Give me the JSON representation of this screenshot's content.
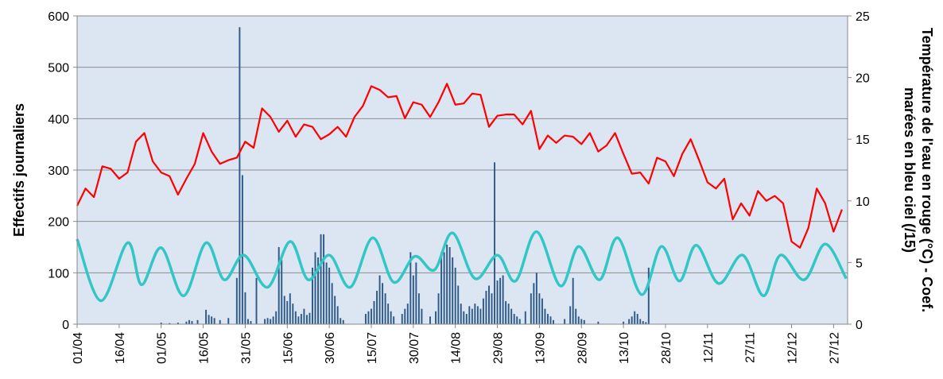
{
  "chart_data": {
    "type": "combo",
    "xlim": [
      0,
      275
    ],
    "xticks": [
      {
        "value": 0,
        "label": "01/04"
      },
      {
        "value": 15,
        "label": "16/04"
      },
      {
        "value": 30,
        "label": "01/05"
      },
      {
        "value": 45,
        "label": "16/05"
      },
      {
        "value": 60,
        "label": "31/05"
      },
      {
        "value": 75,
        "label": "15/06"
      },
      {
        "value": 90,
        "label": "30/06"
      },
      {
        "value": 105,
        "label": "15/07"
      },
      {
        "value": 120,
        "label": "30/07"
      },
      {
        "value": 135,
        "label": "14/08"
      },
      {
        "value": 150,
        "label": "29/08"
      },
      {
        "value": 165,
        "label": "13/09"
      },
      {
        "value": 180,
        "label": "28/09"
      },
      {
        "value": 195,
        "label": "13/10"
      },
      {
        "value": 210,
        "label": "28/10"
      },
      {
        "value": 225,
        "label": "12/11"
      },
      {
        "value": 240,
        "label": "27/11"
      },
      {
        "value": 255,
        "label": "12/12"
      },
      {
        "value": 270,
        "label": "27/12"
      }
    ],
    "ylim": [
      0,
      600
    ],
    "yticks": [
      0,
      100,
      200,
      300,
      400,
      500,
      600
    ],
    "y2lim": [
      0,
      25
    ],
    "y2ticks": [
      0,
      5,
      10,
      15,
      20,
      25
    ],
    "y_label": "Effectifs journaliers",
    "y2_label": [
      "Température de l'eau en rouge (°C) - Coef.",
      "marées en bleu ciel (/15)"
    ],
    "grid": true,
    "background": "#dce6f2",
    "series": [
      {
        "type": "bar",
        "color": "#2e5a8a",
        "x": [
          30,
          33,
          36,
          39,
          40,
          41,
          43,
          46,
          47,
          48,
          49,
          51,
          54,
          57,
          58,
          59,
          60,
          61,
          62,
          64,
          67,
          68,
          69,
          70,
          71,
          72,
          73,
          74,
          75,
          76,
          77,
          78,
          79,
          80,
          81,
          82,
          83,
          84,
          85,
          86,
          87,
          88,
          89,
          90,
          91,
          92,
          93,
          94,
          95,
          103,
          104,
          105,
          106,
          107,
          108,
          109,
          110,
          111,
          112,
          113,
          116,
          117,
          118,
          119,
          120,
          121,
          122,
          123,
          126,
          128,
          129,
          130,
          131,
          132,
          133,
          134,
          135,
          136,
          137,
          138,
          139,
          140,
          141,
          142,
          143,
          144,
          145,
          146,
          147,
          148,
          149,
          150,
          151,
          152,
          153,
          154,
          155,
          156,
          157,
          158,
          160,
          162,
          163,
          164,
          165,
          166,
          167,
          168,
          169,
          170,
          174,
          176,
          177,
          178,
          179,
          180,
          181,
          186,
          195,
          197,
          198,
          199,
          200,
          201,
          202,
          203,
          204
        ],
        "values": [
          3,
          2,
          3,
          5,
          8,
          6,
          8,
          28,
          18,
          15,
          12,
          8,
          12,
          90,
          578,
          290,
          62,
          10,
          6,
          90,
          10,
          12,
          10,
          15,
          25,
          150,
          125,
          55,
          45,
          60,
          40,
          25,
          15,
          20,
          30,
          18,
          22,
          110,
          140,
          130,
          175,
          175,
          120,
          110,
          80,
          55,
          35,
          12,
          8,
          20,
          25,
          30,
          45,
          65,
          95,
          80,
          60,
          40,
          25,
          15,
          20,
          30,
          40,
          140,
          95,
          120,
          60,
          30,
          15,
          25,
          60,
          140,
          140,
          155,
          150,
          130,
          110,
          75,
          40,
          25,
          20,
          35,
          30,
          40,
          35,
          30,
          50,
          65,
          75,
          60,
          315,
          85,
          90,
          95,
          45,
          40,
          30,
          20,
          15,
          10,
          25,
          60,
          80,
          100,
          60,
          50,
          30,
          20,
          15,
          8,
          10,
          35,
          90,
          30,
          15,
          10,
          8,
          5,
          5,
          10,
          15,
          25,
          20,
          10,
          6,
          4,
          110
        ]
      },
      {
        "type": "line",
        "axis": "y2",
        "color": "#ff0000",
        "x": [
          0,
          3,
          6,
          9,
          12,
          15,
          18,
          21,
          24,
          27,
          30,
          33,
          36,
          39,
          42,
          45,
          48,
          51,
          54,
          57,
          60,
          63,
          66,
          69,
          72,
          75,
          78,
          81,
          84,
          87,
          90,
          93,
          96,
          99,
          102,
          105,
          108,
          111,
          114,
          117,
          120,
          123,
          126,
          129,
          132,
          135,
          138,
          141,
          144,
          147,
          150,
          153,
          156,
          159,
          162,
          165,
          168,
          171,
          174,
          177,
          180,
          183,
          186,
          189,
          192,
          195,
          198,
          201,
          204,
          207,
          210,
          213,
          216,
          219,
          222,
          225,
          228,
          231,
          234,
          237,
          240,
          243,
          246,
          249,
          252,
          255,
          258,
          261,
          264,
          267,
          270,
          273
        ],
        "values": [
          9.6,
          11.0,
          10.3,
          12.8,
          12.6,
          11.8,
          12.3,
          14.8,
          15.5,
          13.2,
          12.3,
          12.0,
          10.5,
          11.8,
          13.0,
          15.5,
          14.0,
          13.0,
          13.3,
          13.5,
          14.8,
          14.3,
          17.5,
          16.8,
          15.6,
          16.5,
          15.2,
          16.2,
          16.0,
          15.0,
          15.4,
          16.0,
          15.2,
          16.8,
          17.7,
          19.3,
          19.0,
          18.4,
          18.5,
          16.7,
          18.0,
          17.8,
          16.8,
          18.0,
          19.5,
          17.8,
          17.9,
          18.7,
          18.6,
          16.0,
          16.9,
          17.0,
          17.0,
          16.2,
          17.3,
          14.2,
          15.3,
          14.7,
          15.3,
          15.2,
          14.6,
          15.5,
          14.0,
          14.5,
          15.5,
          13.8,
          12.2,
          12.3,
          11.4,
          13.5,
          13.2,
          12.0,
          13.8,
          15.0,
          13.3,
          11.5,
          11.0,
          11.8,
          8.5,
          9.8,
          8.8,
          10.8,
          10.0,
          10.4,
          9.8,
          6.7,
          6.2,
          7.8,
          11.0,
          9.8,
          7.5,
          9.3
        ]
      },
      {
        "type": "line",
        "axis": "y2",
        "color": "#33c6c6",
        "smooth": true,
        "x": [
          0,
          8.5,
          18,
          23,
          30,
          38,
          46,
          52.5,
          59.5,
          68,
          76,
          82.5,
          90,
          97.5,
          105.5,
          113,
          120.5,
          127.5,
          134,
          142,
          150,
          156.5,
          164,
          172.5,
          179,
          186.5,
          193,
          201.5,
          208.5,
          215,
          221,
          229,
          237.5,
          245,
          251,
          259.5,
          267,
          274.5
        ],
        "values": [
          6.9,
          1.9,
          6.6,
          3.2,
          6.2,
          2.3,
          6.6,
          3.6,
          5.6,
          3.0,
          6.7,
          3.6,
          5.6,
          3.0,
          7.0,
          3.4,
          5.5,
          4.4,
          7.4,
          3.7,
          5.6,
          3.5,
          7.5,
          3.1,
          6.3,
          3.6,
          7.0,
          2.4,
          6.3,
          3.5,
          6.4,
          3.3,
          5.6,
          2.3,
          5.6,
          3.6,
          6.5,
          3.7
        ]
      }
    ]
  }
}
